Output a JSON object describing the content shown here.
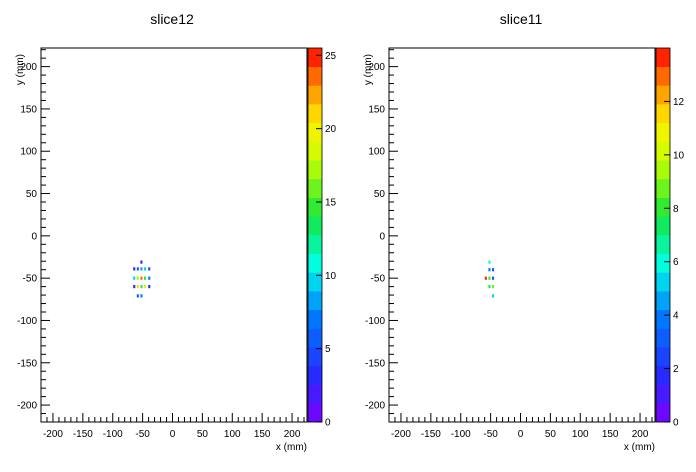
{
  "chart_data": [
    {
      "type": "heatmap",
      "title": "slice12",
      "xlabel": "x (mm)",
      "ylabel": "y (mm)",
      "xlim": [
        -220,
        225
      ],
      "ylim": [
        -220,
        222
      ],
      "xticks": [
        -200,
        -150,
        -100,
        -50,
        0,
        50,
        100,
        150,
        200
      ],
      "yticks": [
        -200,
        -150,
        -100,
        -50,
        0,
        50,
        100,
        150,
        200
      ],
      "zlim": [
        0,
        25.5
      ],
      "zticks": [
        0,
        5,
        10,
        15,
        20,
        25
      ],
      "zcolor_levels": 20,
      "bin_size": [
        6.25,
        6.25
      ],
      "grid": false,
      "cells": [
        {
          "x": -52,
          "y": -31,
          "z": 2
        },
        {
          "x": -64,
          "y": -39,
          "z": 3
        },
        {
          "x": -58,
          "y": -39,
          "z": 6
        },
        {
          "x": -52,
          "y": -39,
          "z": 8
        },
        {
          "x": -46,
          "y": -39,
          "z": 10
        },
        {
          "x": -39,
          "y": -39,
          "z": 4
        },
        {
          "x": -64,
          "y": -50,
          "z": 9
        },
        {
          "x": -58,
          "y": -50,
          "z": 17
        },
        {
          "x": -52,
          "y": -50,
          "z": 23
        },
        {
          "x": -46,
          "y": -50,
          "z": 14
        },
        {
          "x": -39,
          "y": -50,
          "z": 7
        },
        {
          "x": -64,
          "y": -60,
          "z": 3
        },
        {
          "x": -58,
          "y": -60,
          "z": 21
        },
        {
          "x": -52,
          "y": -60,
          "z": 15
        },
        {
          "x": -46,
          "y": -60,
          "z": 19
        },
        {
          "x": -39,
          "y": -60,
          "z": 3
        },
        {
          "x": -58,
          "y": -71,
          "z": 6
        },
        {
          "x": -52,
          "y": -71,
          "z": 7
        }
      ]
    },
    {
      "type": "heatmap",
      "title": "slice11",
      "xlabel": "x (mm)",
      "ylabel": "y (mm)",
      "xlim": [
        -220,
        225
      ],
      "ylim": [
        -220,
        222
      ],
      "xticks": [
        -200,
        -150,
        -100,
        -50,
        0,
        50,
        100,
        150,
        200
      ],
      "yticks": [
        -200,
        -150,
        -100,
        -50,
        0,
        50,
        100,
        150,
        200
      ],
      "zlim": [
        0,
        14
      ],
      "zticks": [
        0,
        2,
        4,
        6,
        8,
        10,
        12
      ],
      "zcolor_levels": 20,
      "bin_size": [
        6.25,
        6.25
      ],
      "grid": false,
      "cells": [
        {
          "x": -52,
          "y": -31,
          "z": 6
        },
        {
          "x": -52,
          "y": -40,
          "z": 4
        },
        {
          "x": -46,
          "y": -40,
          "z": 3
        },
        {
          "x": -58,
          "y": -50,
          "z": 13.5
        },
        {
          "x": -52,
          "y": -50,
          "z": 8
        },
        {
          "x": -46,
          "y": -50,
          "z": 3
        },
        {
          "x": -52,
          "y": -60,
          "z": 7
        },
        {
          "x": -46,
          "y": -60,
          "z": 9
        },
        {
          "x": -46,
          "y": -71,
          "z": 5
        }
      ]
    }
  ]
}
